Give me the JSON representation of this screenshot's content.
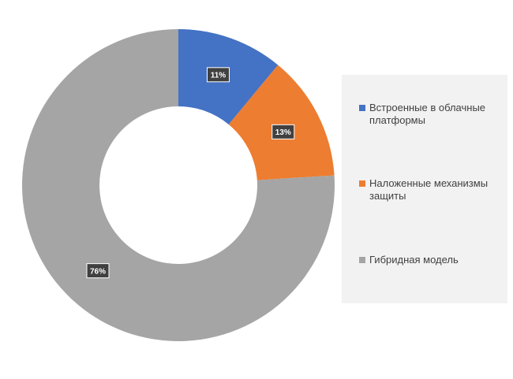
{
  "chart_data": {
    "type": "donut",
    "categories": [
      "Встроенные в облачные платформы",
      "Наложенные механизмы защиты",
      "Гибридная модель"
    ],
    "values": [
      11,
      13,
      76
    ],
    "value_labels": [
      "11%",
      "13%",
      "76%"
    ],
    "colors": [
      "#4472c4",
      "#ed7d31",
      "#a5a5a5"
    ]
  }
}
